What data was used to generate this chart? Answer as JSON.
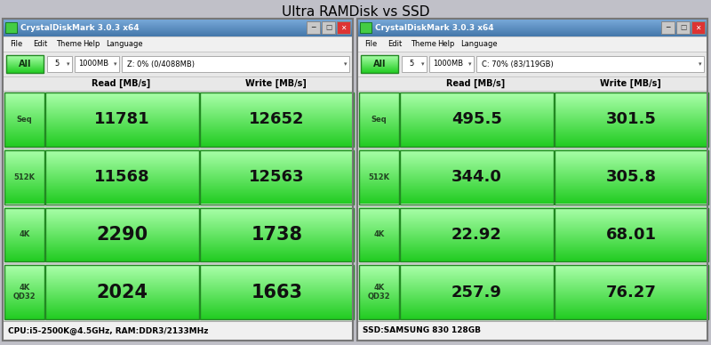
{
  "title": "Ultra RAMDisk vs SSD",
  "fig_w": 8.0,
  "fig_h": 3.88,
  "dpi": 100,
  "bg_color": "#c0c0c8",
  "title_color": "#000000",
  "title_fontsize": 11,
  "titlebar_color": "#6699cc",
  "titlebar_text_color": "#ffffff",
  "menu_bg": "#f0f0f0",
  "panel_bg": "#e8e8e8",
  "white_bg": "#ffffff",
  "green_btn": "#44cc44",
  "green_cell_bg": "#55ee55",
  "green_cell_border": "#228822",
  "green_label_bg": "#44cc44",
  "cell_text_color": "#111111",
  "label_text_color": "#224422",
  "header_text_color": "#000000",
  "footer_bg": "#f0f0f0",
  "separator_color": "#aaaaaa",
  "left_panel": {
    "title": "CrystalDiskMark 3.0.3 x64",
    "drop1": "5",
    "drop2": "1000MB",
    "drop3": "Z: 0% (0/4088MB)",
    "footer": "CPU:i5-2500K@4.5GHz, RAM:DDR3/2133MHz",
    "rows": [
      "Seq",
      "512K",
      "4K",
      "4K\nQD32"
    ],
    "read": [
      "11781",
      "11568",
      "2290",
      "2024"
    ],
    "write": [
      "12652",
      "12563",
      "1738",
      "1663"
    ]
  },
  "right_panel": {
    "title": "CrystalDiskMark 3.0.3 x64",
    "drop1": "5",
    "drop2": "1000MB",
    "drop3": "C: 70% (83/119GB)",
    "footer": "SSD:SAMSUNG 830 128GB",
    "rows": [
      "Seq",
      "512K",
      "4K",
      "4K\nQD32"
    ],
    "read": [
      "495.5",
      "344.0",
      "22.92",
      "257.9"
    ],
    "write": [
      "301.5",
      "305.8",
      "68.01",
      "76.27"
    ]
  }
}
